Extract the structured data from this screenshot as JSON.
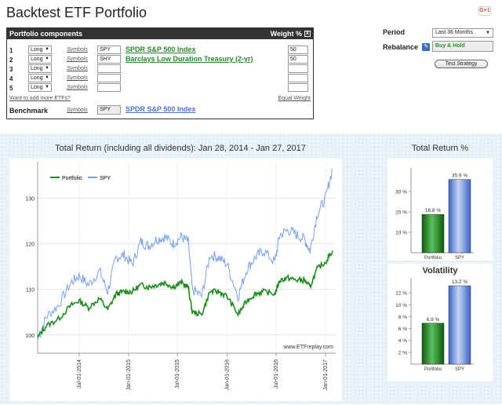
{
  "page": {
    "title": "Backtest ETF Portfolio",
    "gplus_label": "G+1"
  },
  "portfolio": {
    "header": "Portfolio components",
    "weight_header": "Weight %",
    "close_glyph": "x",
    "rows": [
      {
        "num": "1",
        "position": "Long",
        "symbols_link": "Symbols",
        "ticker": "SPY",
        "name": "SPDR S&P 500 Index",
        "weight": "50"
      },
      {
        "num": "2",
        "position": "Long",
        "symbols_link": "Symbols",
        "ticker": "SHY",
        "name": "Barclays Low Duration Treasury (2-yr)",
        "weight": "50"
      },
      {
        "num": "3",
        "position": "Long",
        "symbols_link": "Symbols",
        "ticker": "",
        "name": "",
        "weight": ""
      },
      {
        "num": "4",
        "position": "Long",
        "symbols_link": "Symbols",
        "ticker": "",
        "name": "",
        "weight": ""
      },
      {
        "num": "5",
        "position": "Long",
        "symbols_link": "Symbols",
        "ticker": "",
        "name": "",
        "weight": ""
      }
    ],
    "add_more": "Want to add more ETFs?",
    "equal_weight": "Equal Weight",
    "benchmark_label": "Benchmark",
    "benchmark_symbols": "Symbols",
    "benchmark_ticker": "SPY",
    "benchmark_name": "SPDR S&P 500 Index"
  },
  "controls": {
    "period_label": "Period",
    "period_value": "Last 36 Months",
    "rebalance_label": "Rebalance",
    "rebalance_value": "Buy & Hold",
    "test_button": "Test Strategy"
  },
  "colors": {
    "portfolio": "#1e8c1e",
    "spy": "#7aa0ea",
    "accent_green": "#2a8a2a",
    "accent_blue": "#4a76c8"
  },
  "chart_data": [
    {
      "type": "line",
      "title": "Total Return (including all dividends): Jan 28, 2014 - Jan 27, 2017",
      "watermark": "www.ETFreplay.com",
      "x_ticks": [
        "Jul-01-2014",
        "Jan-01-2015",
        "Jul-01-2015",
        "Jan-01-2016",
        "Jul-01-2016",
        "Jan-01-2017"
      ],
      "y_ticks": [
        100,
        110,
        120,
        130
      ],
      "ylim": [
        96,
        138
      ],
      "legend_position": "top-left",
      "x": [
        "2014-01-28",
        "2014-03-01",
        "2014-04-15",
        "2014-06-01",
        "2014-07-01",
        "2014-08-05",
        "2014-09-15",
        "2014-10-15",
        "2014-11-15",
        "2014-12-15",
        "2015-01-15",
        "2015-02-15",
        "2015-03-15",
        "2015-04-15",
        "2015-05-15",
        "2015-06-15",
        "2015-07-15",
        "2015-08-10",
        "2015-08-25",
        "2015-09-29",
        "2015-10-30",
        "2015-12-01",
        "2016-01-01",
        "2016-02-11",
        "2016-03-15",
        "2016-04-15",
        "2016-05-15",
        "2016-06-27",
        "2016-07-15",
        "2016-08-15",
        "2016-09-15",
        "2016-10-15",
        "2016-11-04",
        "2016-12-01",
        "2017-01-01",
        "2017-01-27"
      ],
      "series": [
        {
          "name": "Portfolio",
          "values": [
            99.5,
            102,
            103.5,
            106.5,
            107.5,
            106,
            108,
            105.5,
            109,
            109.5,
            109.5,
            111,
            110.5,
            111,
            111.5,
            110.5,
            111.5,
            110.5,
            105,
            104.5,
            109.5,
            109.5,
            108.5,
            104.5,
            107.5,
            109,
            109.5,
            109,
            112,
            112.5,
            112,
            112,
            110.5,
            114.5,
            116,
            118.5
          ]
        },
        {
          "name": "SPY",
          "values": [
            99,
            104,
            106.5,
            111.5,
            113,
            111,
            114,
            109.5,
            117,
            117.5,
            115.5,
            120.5,
            119.5,
            121,
            121.5,
            120,
            121.5,
            120.5,
            110,
            108.5,
            117.5,
            117,
            115.5,
            108.5,
            114.5,
            117,
            118.5,
            116,
            122,
            123,
            122,
            121,
            118.5,
            126.5,
            130,
            136.5
          ]
        }
      ]
    },
    {
      "type": "bar",
      "title": "Total Return %",
      "categories": [
        "Portfolio",
        "SPY"
      ],
      "values": [
        18.8,
        35.9
      ],
      "value_labels": [
        "18.8 %",
        "35.9 %"
      ],
      "y_ticks": [
        "10 %",
        "20 %",
        "30 %"
      ],
      "ylim": [
        0,
        40
      ]
    },
    {
      "type": "bar",
      "title": "Volatility",
      "categories": [
        "Portfolio",
        "SPY"
      ],
      "values": [
        6.9,
        13.2
      ],
      "value_labels": [
        "6.9 %",
        "13.2 %"
      ],
      "y_ticks": [
        "2 %",
        "4 %",
        "6 %",
        "8 %",
        "10 %",
        "12 %"
      ],
      "ylim": [
        0,
        14
      ]
    }
  ]
}
